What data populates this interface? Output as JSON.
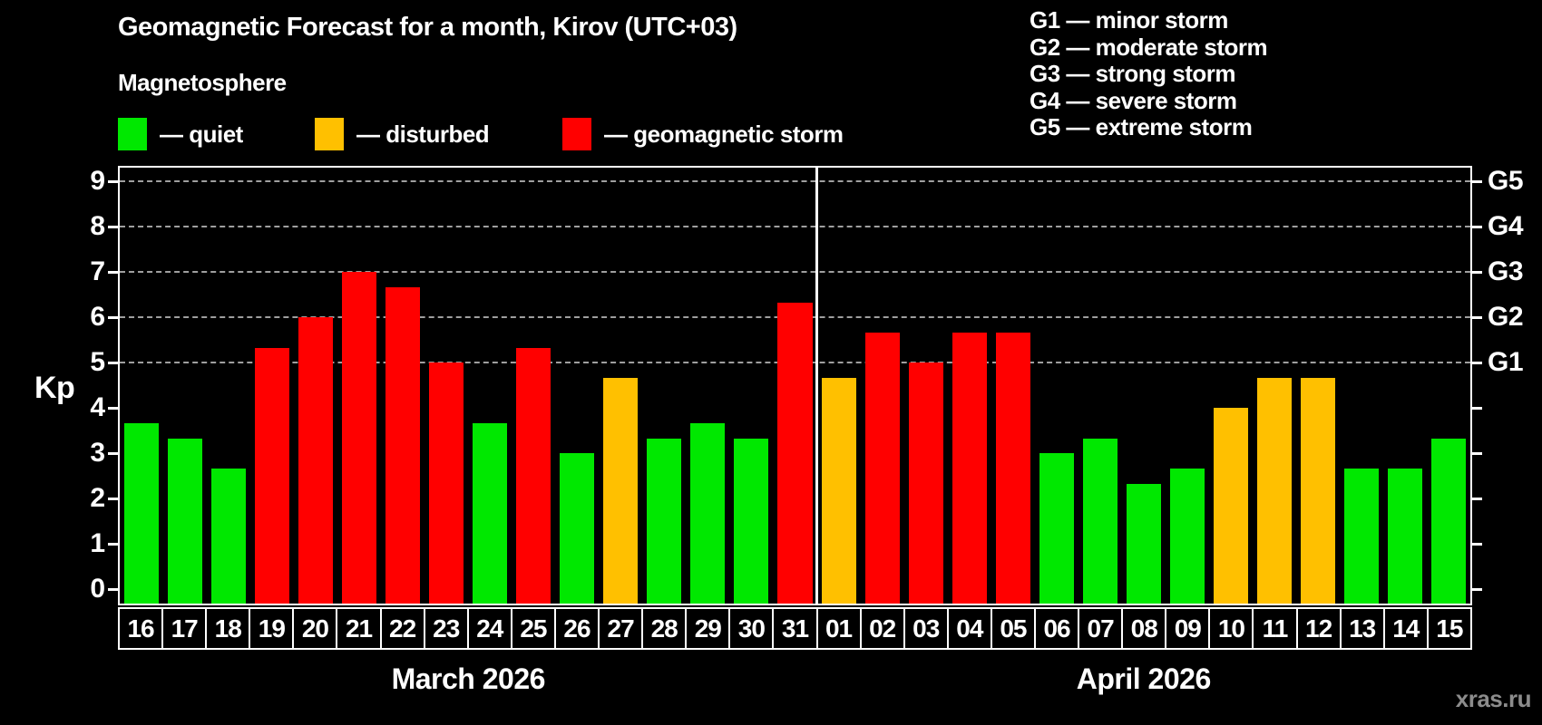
{
  "header": {
    "title": "Geomagnetic Forecast for a month, Kirov (UTC+03)",
    "subtitle": "Magnetosphere"
  },
  "legend": {
    "items": [
      {
        "label": "— quiet",
        "category": "quiet",
        "color": "#00e800"
      },
      {
        "label": "— disturbed",
        "category": "disturbed",
        "color": "#ffc000"
      },
      {
        "label": "— geomagnetic storm",
        "category": "storm",
        "color": "#ff0000"
      }
    ]
  },
  "storm_scale_legend": [
    "G1 — minor storm",
    "G2 — moderate storm",
    "G3 — strong storm",
    "G4 — severe storm",
    "G5 — extreme storm"
  ],
  "watermark": "xras.ru",
  "chart_data": {
    "type": "bar",
    "title": "Geomagnetic Forecast for a month, Kirov (UTC+03)",
    "ylabel": "Kp",
    "ylim": [
      0,
      9.4
    ],
    "y_ticks": [
      0,
      1,
      2,
      3,
      4,
      5,
      6,
      7,
      8,
      9
    ],
    "grid": {
      "horizontal_dashed_at_kp": [
        5,
        6,
        7,
        8,
        9
      ]
    },
    "right_axis": {
      "labels": [
        {
          "text": "G1",
          "kp": 5
        },
        {
          "text": "G2",
          "kp": 6
        },
        {
          "text": "G3",
          "kp": 7
        },
        {
          "text": "G4",
          "kp": 8
        },
        {
          "text": "G5",
          "kp": 9
        }
      ]
    },
    "category_colors": {
      "quiet": "#00e800",
      "disturbed": "#ffc000",
      "storm": "#ff0000"
    },
    "months": [
      {
        "label": "March 2026",
        "days": [
          {
            "date": "16",
            "kp": 3.67,
            "category": "quiet"
          },
          {
            "date": "17",
            "kp": 3.33,
            "category": "quiet"
          },
          {
            "date": "18",
            "kp": 2.67,
            "category": "quiet"
          },
          {
            "date": "19",
            "kp": 5.33,
            "category": "storm"
          },
          {
            "date": "20",
            "kp": 6.0,
            "category": "storm"
          },
          {
            "date": "21",
            "kp": 7.0,
            "category": "storm"
          },
          {
            "date": "22",
            "kp": 6.67,
            "category": "storm"
          },
          {
            "date": "23",
            "kp": 5.0,
            "category": "storm"
          },
          {
            "date": "24",
            "kp": 3.67,
            "category": "quiet"
          },
          {
            "date": "25",
            "kp": 5.33,
            "category": "storm"
          },
          {
            "date": "26",
            "kp": 3.0,
            "category": "quiet"
          },
          {
            "date": "27",
            "kp": 4.67,
            "category": "disturbed"
          },
          {
            "date": "28",
            "kp": 3.33,
            "category": "quiet"
          },
          {
            "date": "29",
            "kp": 3.67,
            "category": "quiet"
          },
          {
            "date": "30",
            "kp": 3.33,
            "category": "quiet"
          },
          {
            "date": "31",
            "kp": 6.33,
            "category": "storm"
          }
        ]
      },
      {
        "label": "April 2026",
        "days": [
          {
            "date": "01",
            "kp": 4.67,
            "category": "disturbed"
          },
          {
            "date": "02",
            "kp": 5.67,
            "category": "storm"
          },
          {
            "date": "03",
            "kp": 5.0,
            "category": "storm"
          },
          {
            "date": "04",
            "kp": 5.67,
            "category": "storm"
          },
          {
            "date": "05",
            "kp": 5.67,
            "category": "storm"
          },
          {
            "date": "06",
            "kp": 3.0,
            "category": "quiet"
          },
          {
            "date": "07",
            "kp": 3.33,
            "category": "quiet"
          },
          {
            "date": "08",
            "kp": 2.33,
            "category": "quiet"
          },
          {
            "date": "09",
            "kp": 2.67,
            "category": "quiet"
          },
          {
            "date": "10",
            "kp": 4.0,
            "category": "disturbed"
          },
          {
            "date": "11",
            "kp": 4.67,
            "category": "disturbed"
          },
          {
            "date": "12",
            "kp": 4.67,
            "category": "disturbed"
          },
          {
            "date": "13",
            "kp": 2.67,
            "category": "quiet"
          },
          {
            "date": "14",
            "kp": 2.67,
            "category": "quiet"
          },
          {
            "date": "15",
            "kp": 3.33,
            "category": "quiet"
          }
        ]
      }
    ]
  }
}
